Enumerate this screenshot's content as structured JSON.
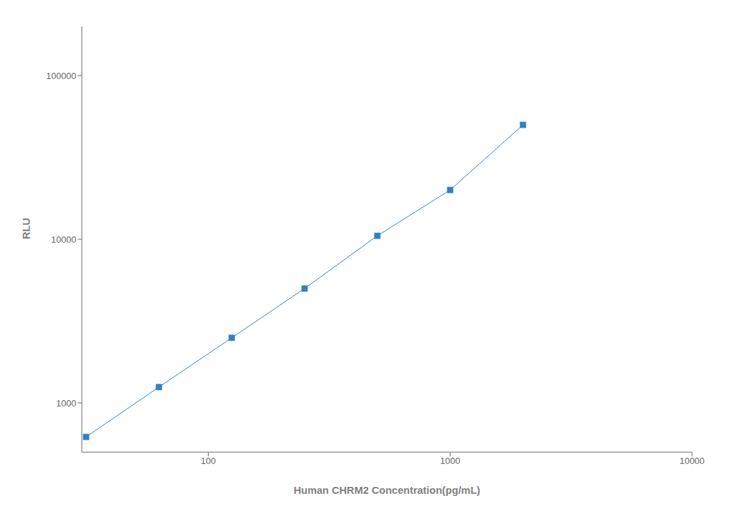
{
  "chart_data": {
    "type": "line",
    "x": [
      31.25,
      62.5,
      125,
      250,
      500,
      1000,
      2000
    ],
    "values": [
      620,
      1250,
      2500,
      5000,
      10500,
      20000,
      50000
    ],
    "xlabel": "Human CHRM2 Concentration(pg/mL)",
    "ylabel": "RLU",
    "xlim": [
      30,
      10000
    ],
    "ylim": [
      500,
      200000
    ],
    "xticks": [
      100,
      1000,
      10000
    ],
    "yticks": [
      1000,
      10000,
      100000
    ],
    "log": true,
    "grid": false,
    "marker": "square"
  }
}
